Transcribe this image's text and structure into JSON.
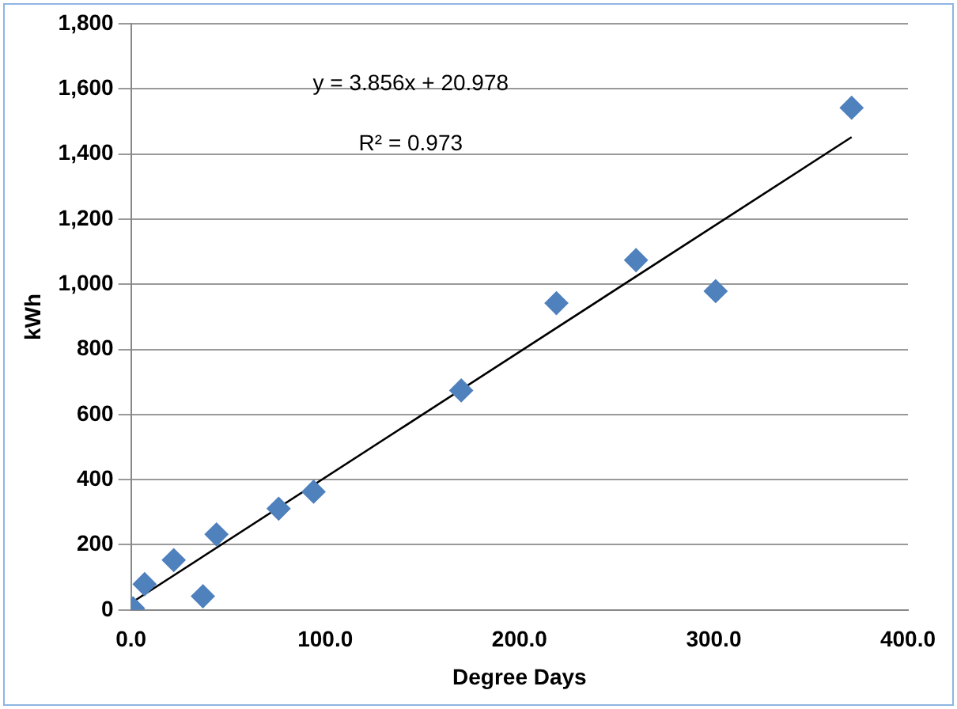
{
  "chart_data": {
    "type": "scatter",
    "xlabel": "Degree Days",
    "ylabel": "kWh",
    "series": [
      {
        "color": "#4f81bd",
        "marker": "diamond",
        "x": [
          1,
          7,
          22,
          37,
          44,
          76,
          94,
          170,
          219,
          260,
          301,
          371
        ],
        "values": [
          5,
          79,
          153,
          42,
          232,
          311,
          363,
          674,
          942,
          1074,
          979,
          1542
        ]
      },
      {
        "type": "line",
        "color": "#000000",
        "marker": "none",
        "line_style": "solid",
        "x": [
          1,
          371
        ],
        "values": [
          25,
          1452
        ]
      }
    ],
    "xlim": [
      0,
      400
    ],
    "xticks": [
      {
        "value": 0,
        "label": "0.0"
      },
      {
        "value": 100,
        "label": "100.0"
      },
      {
        "value": 200,
        "label": "200.0"
      },
      {
        "value": 300,
        "label": "300.0"
      },
      {
        "value": 400,
        "label": "400.0"
      }
    ],
    "ylim": [
      0,
      1800
    ],
    "yticks": [
      {
        "value": 0,
        "label": "0"
      },
      {
        "value": 200,
        "label": "200"
      },
      {
        "value": 400,
        "label": "400"
      },
      {
        "value": 600,
        "label": "600"
      },
      {
        "value": 800,
        "label": "800"
      },
      {
        "value": 1000,
        "label": "1,000"
      },
      {
        "value": 1200,
        "label": "1,200"
      },
      {
        "value": 1400,
        "label": "1,400"
      },
      {
        "value": 1600,
        "label": "1,600"
      },
      {
        "value": 1800,
        "label": "1,800"
      }
    ],
    "grid": "y",
    "legend": false,
    "annotations": [
      "y = 3.856x + 20.978",
      "R² = 0.973"
    ]
  }
}
